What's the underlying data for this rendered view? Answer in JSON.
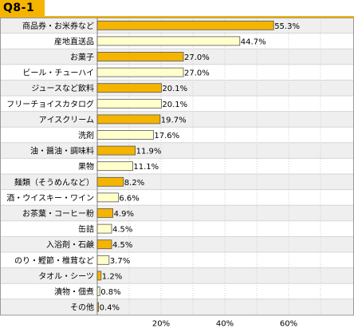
{
  "header": {
    "title": "Q8-1"
  },
  "colors": {
    "accent": "#f4b400",
    "bar_highlight": "#f4b400",
    "bar_light": "#ffffcc",
    "row_alt": "#efefef",
    "grid": "#cccccc"
  },
  "chart_data": {
    "type": "bar",
    "orientation": "horizontal",
    "title": "",
    "xlabel": "",
    "ylabel": "",
    "xlim": [
      0,
      80
    ],
    "grid": true,
    "value_suffix": "%",
    "categories": [
      "商品券・お米券など",
      "産地直送品",
      "お菓子",
      "ビール・チューハイ",
      "ジュースなど飲料",
      "フリーチョイスカタログ",
      "アイスクリーム",
      "洗剤",
      "油・醤油・調味料",
      "果物",
      "麺類（そうめんなど）",
      "酒・ウイスキー・ワイン",
      "お茶葉・コーヒー粉",
      "缶詰",
      "入浴剤・石鹸",
      "のり・鰹節・椎茸など",
      "タオル・シーツ",
      "漬物・佃煮",
      "その他"
    ],
    "values": [
      55.3,
      44.7,
      27.0,
      27.0,
      20.1,
      20.1,
      19.7,
      17.6,
      11.9,
      11.1,
      8.2,
      6.6,
      4.9,
      4.5,
      4.5,
      3.7,
      1.2,
      0.8,
      0.4
    ],
    "value_labels": [
      "55.3%",
      "44.7%",
      "27.0%",
      "27.0%",
      "20.1%",
      "20.1%",
      "19.7%",
      "17.6%",
      "11.9%",
      "11.1%",
      "8.2%",
      "6.6%",
      "4.9%",
      "4.5%",
      "4.5%",
      "3.7%",
      "1.2%",
      "0.8%",
      "0.4%"
    ],
    "highlighted": [
      true,
      false,
      true,
      false,
      true,
      false,
      true,
      false,
      true,
      false,
      true,
      false,
      true,
      false,
      true,
      false,
      true,
      false,
      true
    ],
    "x_ticks": [
      20,
      40,
      60
    ],
    "x_tick_labels": [
      "20%",
      "40%",
      "60%"
    ]
  }
}
